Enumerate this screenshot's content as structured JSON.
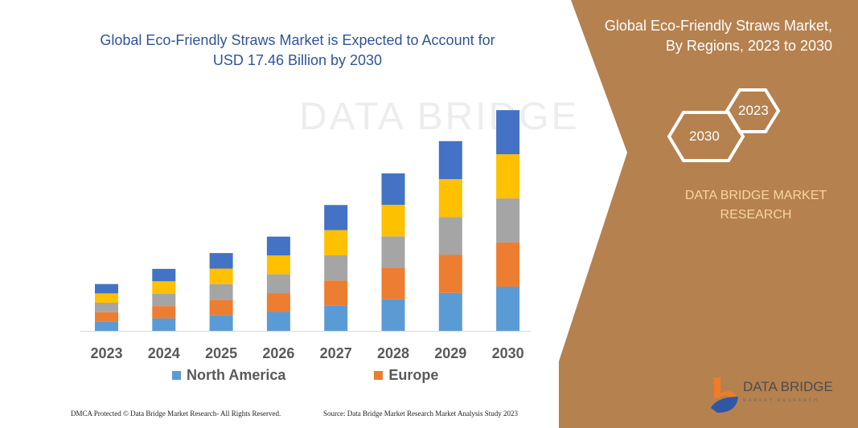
{
  "chart_data": {
    "type": "bar",
    "stacked": true,
    "title": "Global Eco-Friendly Straws Market is Expected to Account for USD 17.46 Billion by 2030",
    "categories": [
      "2023",
      "2024",
      "2025",
      "2026",
      "2027",
      "2028",
      "2029",
      "2030"
    ],
    "series": [
      {
        "name": "North America",
        "color": "#5b9bd5",
        "values": [
          0.74,
          0.98,
          1.23,
          1.49,
          1.99,
          2.49,
          3.0,
          3.49
        ]
      },
      {
        "name": "Europe",
        "color": "#ed7d31",
        "values": [
          0.74,
          0.98,
          1.23,
          1.49,
          1.99,
          2.49,
          3.0,
          3.49
        ]
      },
      {
        "color": "#a5a5a5",
        "values": [
          0.74,
          0.98,
          1.23,
          1.49,
          1.99,
          2.49,
          3.0,
          3.49
        ]
      },
      {
        "color": "#ffc000",
        "values": [
          0.74,
          0.98,
          1.23,
          1.49,
          1.99,
          2.49,
          3.0,
          3.49
        ]
      },
      {
        "color": "#4472c4",
        "values": [
          0.74,
          0.98,
          1.23,
          1.49,
          1.99,
          2.49,
          3.0,
          3.49
        ]
      }
    ],
    "ylim": [
      0,
      17.46
    ],
    "grid": false,
    "legend_position": "bottom"
  },
  "header": {
    "title_line1": "Global Eco-Friendly Straws Market is Expected to Account for",
    "title_line2": "USD 17.46 Billion by 2030"
  },
  "watermark": "DATA BRIDGE",
  "side": {
    "title_line1": "Global Eco-Friendly Straws Market,",
    "title_line2": "By Regions, 2023 to 2030",
    "hex_a": "2023",
    "hex_b": "2030",
    "brand_line1": "DATA BRIDGE MARKET",
    "brand_line2": "RESEARCH",
    "logo": "DATA BRIDGE",
    "logo_sub": "MARKET RESEARCH"
  },
  "footer": {
    "left": "DMCA Protected © Data Bridge Market Research-  All Rights Reserved.",
    "right": "Source: Data Bridge Market Research  Market Analysis Study 2023"
  },
  "colors": {
    "panel": "#b5814f",
    "title": "#2f5597"
  }
}
